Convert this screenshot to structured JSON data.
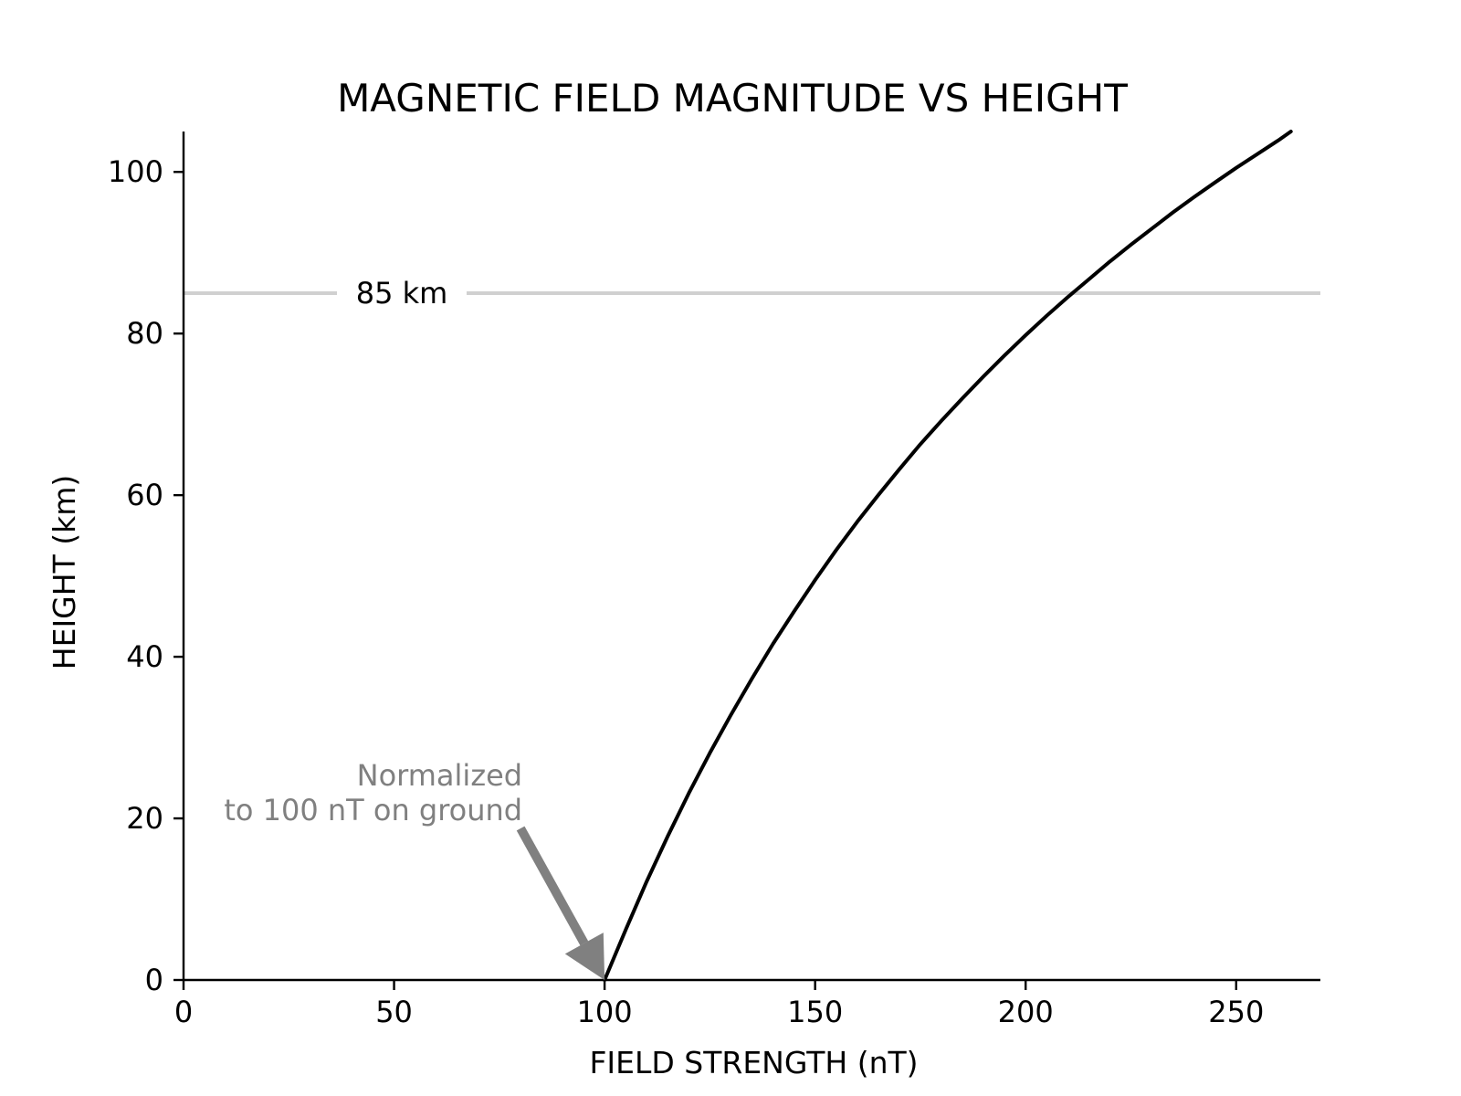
{
  "chart_data": {
    "type": "line",
    "title": "MAGNETIC FIELD MAGNITUDE VS HEIGHT",
    "xlabel": "FIELD STRENGTH (nT)",
    "ylabel": "HEIGHT (km)",
    "xlim": [
      0,
      270
    ],
    "ylim": [
      0,
      105
    ],
    "xticks": [
      0,
      50,
      100,
      150,
      200,
      250
    ],
    "yticks": [
      0,
      20,
      40,
      60,
      80,
      100
    ],
    "grid": false,
    "series": [
      {
        "x": [
          100,
          105,
          110,
          115,
          120,
          125,
          130,
          135,
          140,
          145,
          150,
          155,
          160,
          165,
          170,
          175,
          180,
          185,
          190,
          195,
          200,
          205,
          210,
          215,
          220,
          225,
          230,
          235,
          240,
          245,
          250,
          255,
          260,
          263
        ],
        "y": [
          0,
          6.2,
          12.2,
          17.8,
          23.1,
          28.1,
          32.8,
          37.3,
          41.6,
          45.6,
          49.5,
          53.2,
          56.7,
          60.0,
          63.2,
          66.3,
          69.2,
          72.0,
          74.7,
          77.3,
          79.8,
          82.2,
          84.5,
          86.7,
          88.9,
          91.0,
          93.0,
          95.0,
          96.9,
          98.7,
          100.5,
          102.2,
          103.9,
          105.0
        ],
        "color": "#000000"
      }
    ],
    "reference_line": {
      "y": 85,
      "label": "85 km",
      "color": "#d0d0d0"
    },
    "annotation": {
      "text_lines": [
        "Normalized",
        "to 100 nT on ground"
      ],
      "point_x": 100,
      "point_y": 0,
      "color": "#808080"
    }
  }
}
